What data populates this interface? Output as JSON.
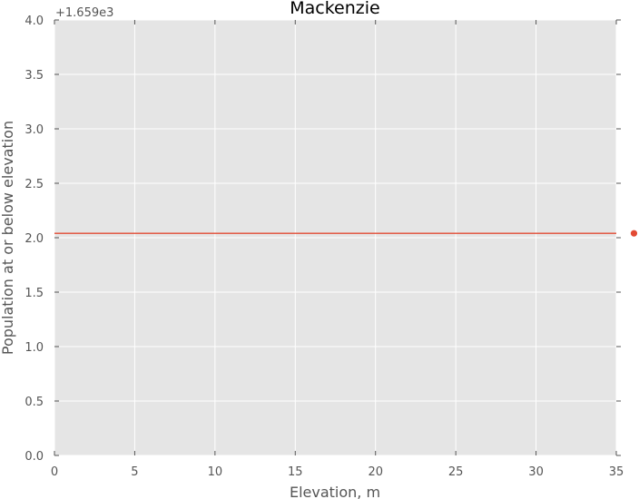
{
  "chart_data": {
    "type": "line",
    "title": "Mackenzie",
    "xlabel": "Elevation, m",
    "ylabel": "Population at or below elevation",
    "xlim": [
      0,
      35
    ],
    "ylim": [
      0.0,
      4.0
    ],
    "y_offset_label": "+1.659e3",
    "x_ticks": [
      "0",
      "5",
      "10",
      "15",
      "20",
      "25",
      "30",
      "35"
    ],
    "y_ticks": [
      "0.0",
      "0.5",
      "1.0",
      "1.5",
      "2.0",
      "2.5",
      "3.0",
      "3.5",
      "4.0"
    ],
    "grid": true,
    "series": [
      {
        "color": "#e24a33",
        "line": {
          "x": [
            0,
            35
          ],
          "y": [
            2.04,
            2.04
          ]
        },
        "points": [
          {
            "x": 36.1,
            "y": 2.04
          }
        ]
      }
    ],
    "background_color": "#e5e5e5",
    "grid_color": "#ffffff"
  }
}
